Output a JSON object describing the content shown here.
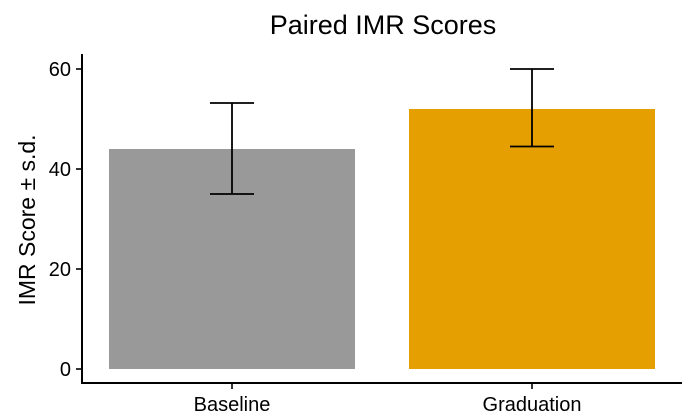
{
  "chart_data": {
    "type": "bar",
    "title": "Paired IMR Scores",
    "xlabel": "",
    "ylabel": "IMR Score ± s.d.",
    "categories": [
      "Baseline",
      "Graduation"
    ],
    "values": [
      44,
      52
    ],
    "error_low": [
      35,
      44.5
    ],
    "error_high": [
      53.2,
      60
    ],
    "ylim": [
      0,
      62
    ],
    "yticks": [
      0,
      20,
      40,
      60
    ],
    "colors": [
      "#999999",
      "#E69F00"
    ],
    "grid": false,
    "legend": "none"
  }
}
